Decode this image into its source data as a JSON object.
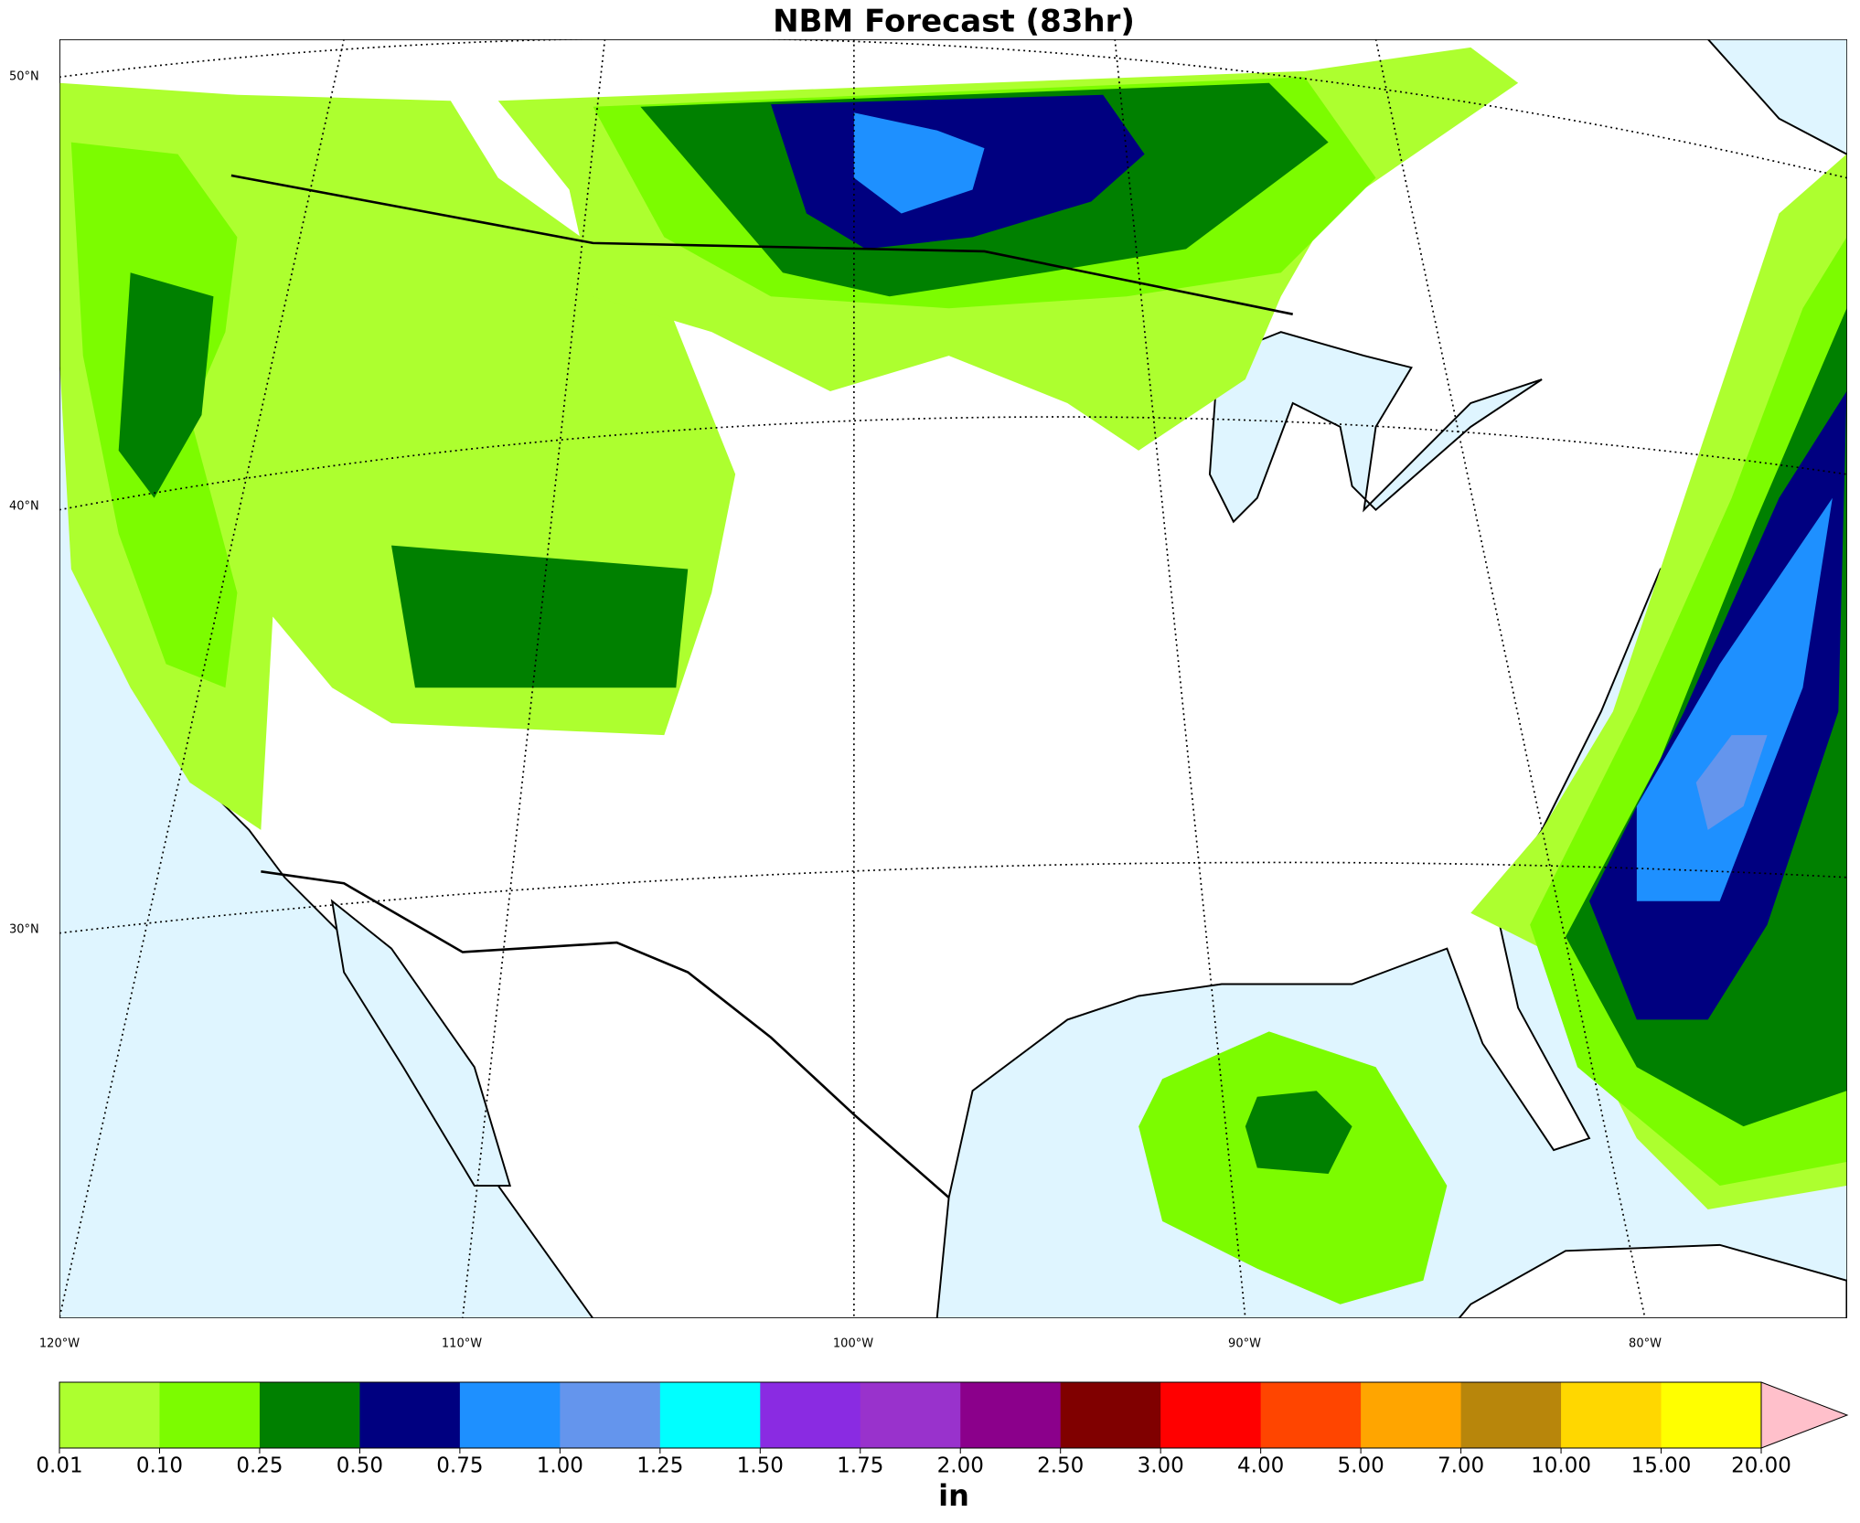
{
  "title": "NBM Forecast (83hr)",
  "lat_labels": [
    "50°N",
    "40°N",
    "30°N"
  ],
  "lon_labels": [
    "120°W",
    "110°W",
    "100°W",
    "90°W",
    "80°W"
  ],
  "colorbar": {
    "unit": "in",
    "ticks": [
      {
        "value": 0.01,
        "label": "0.01"
      },
      {
        "value": 0.1,
        "label": "0.10"
      },
      {
        "value": 0.25,
        "label": "0.25"
      },
      {
        "value": 0.5,
        "label": "0.50"
      },
      {
        "value": 0.75,
        "label": "0.75"
      },
      {
        "value": 1,
        "label": "1.00"
      },
      {
        "value": 1.25,
        "label": "1.25"
      },
      {
        "value": 1.5,
        "label": "1.50"
      },
      {
        "value": 1.75,
        "label": "1.75"
      },
      {
        "value": 2,
        "label": "2.00"
      },
      {
        "value": 2.5,
        "label": "2.50"
      },
      {
        "value": 3,
        "label": "3.00"
      },
      {
        "value": 4,
        "label": "4.00"
      },
      {
        "value": 5,
        "label": "5.00"
      },
      {
        "value": 7,
        "label": "7.00"
      },
      {
        "value": 10,
        "label": "10.00"
      },
      {
        "value": 15,
        "label": "15.00"
      },
      {
        "value": 20,
        "label": "20.00"
      }
    ],
    "colors": [
      "#adff2f",
      "#7cfc00",
      "#008000",
      "#000080",
      "#1e90ff",
      "#6495ed",
      "#00ffff",
      "#8a2be2",
      "#9932cc",
      "#8b008b",
      "#800000",
      "#ff0000",
      "#ff4500",
      "#ffa500",
      "#b8860b",
      "#ffd700",
      "#ffff00"
    ],
    "extend_color": "#ffc0cb"
  }
}
